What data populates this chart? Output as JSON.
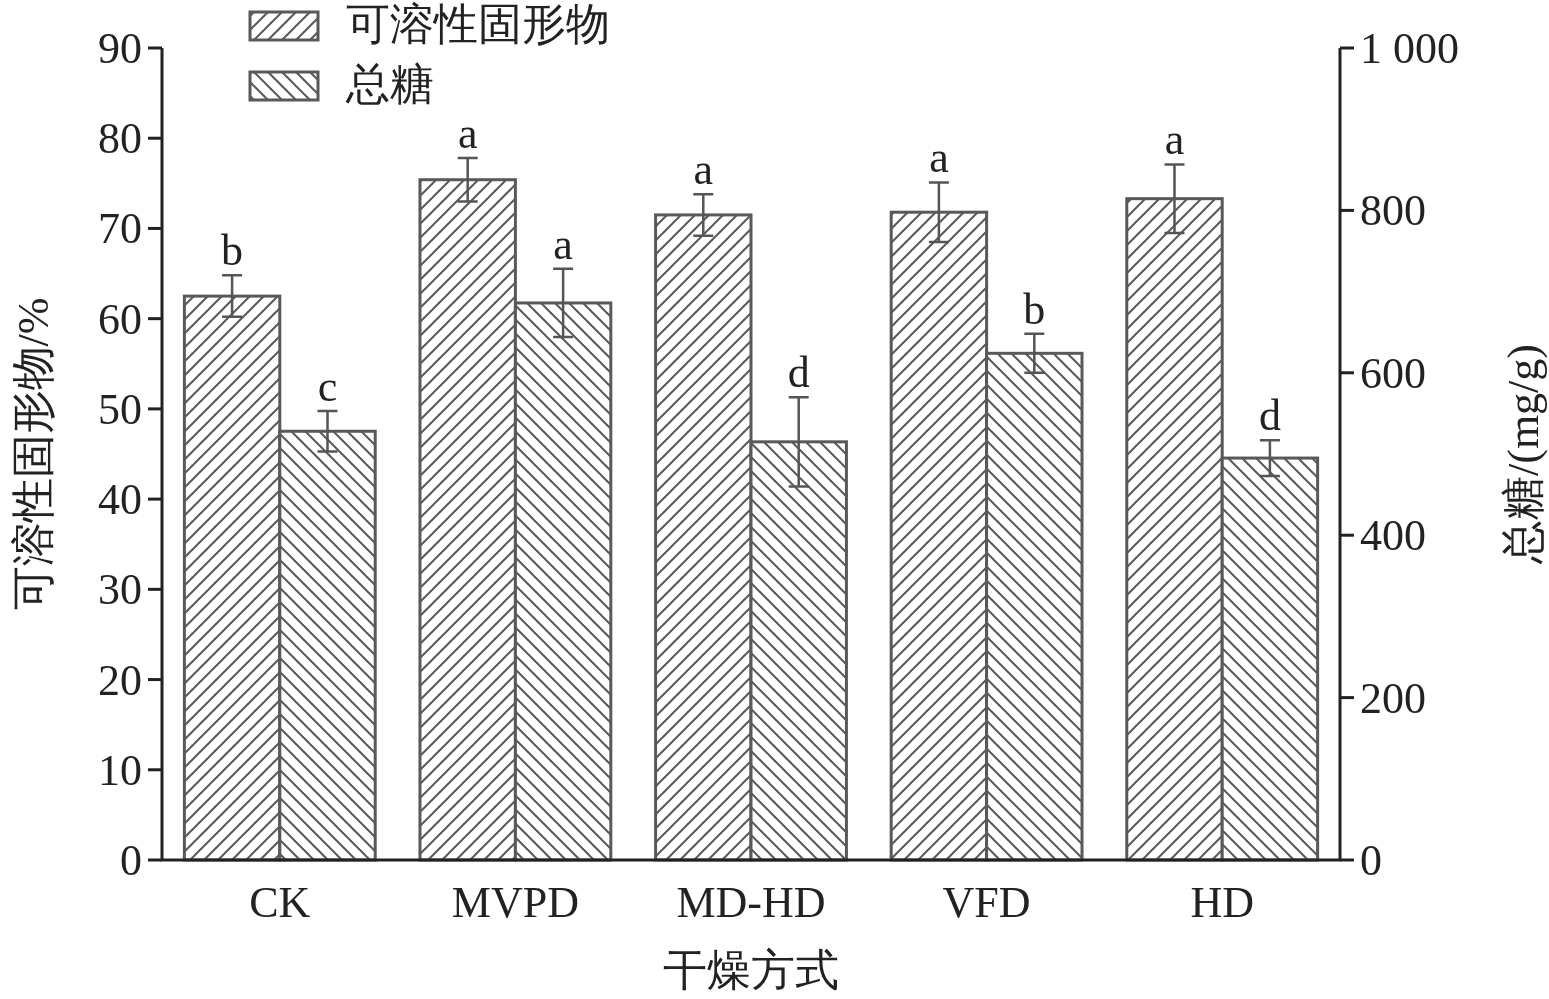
{
  "chart_data": {
    "type": "bar",
    "xlabel": "干燥方式",
    "ylabel": "可溶性固形物/%",
    "y2label": "总糖/(mg/g)",
    "categories": [
      "CK",
      "MVPD",
      "MD-HD",
      "VFD",
      "HD"
    ],
    "series": [
      {
        "name": "可溶性固形物",
        "color": "#595959",
        "values": [
          62.5,
          75.4,
          71.5,
          71.8,
          73.3
        ],
        "errors": [
          2.3,
          2.4,
          2.3,
          3.3,
          3.8
        ],
        "value_labels": [
          "b",
          "a",
          "a",
          "a",
          "a"
        ]
      },
      {
        "name": "总糖",
        "color": "#595959",
        "axis": "y2",
        "values": [
          528,
          686,
          515,
          624,
          495
        ],
        "errors": [
          25,
          42,
          55,
          24,
          22
        ],
        "value_labels": [
          "c",
          "a",
          "d",
          "b",
          "d"
        ]
      }
    ],
    "ylim": [
      0,
      90
    ],
    "yticks": [
      0,
      10,
      20,
      30,
      40,
      50,
      60,
      70,
      80,
      90
    ],
    "y2lim": [
      0,
      1000
    ],
    "y2ticks": [
      0,
      200,
      400,
      600,
      800,
      {
        "value": 1000,
        "label": "1 000"
      }
    ],
    "legend": "top left"
  }
}
